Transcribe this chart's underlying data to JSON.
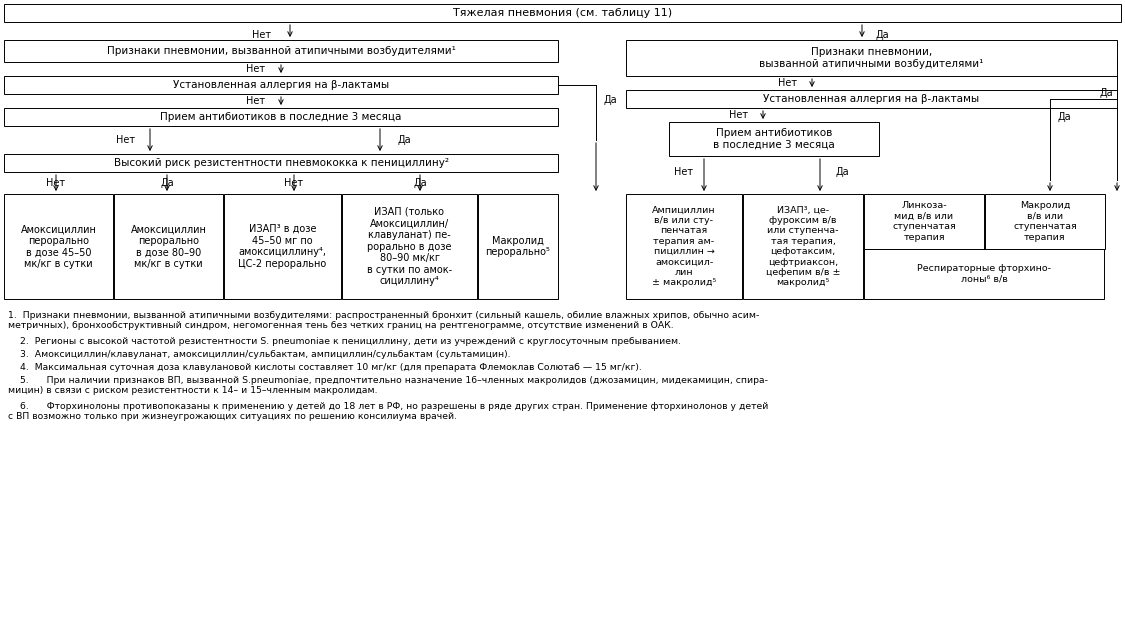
{
  "title": "Тяжелая пневмония (см. таблицу 11)",
  "bg_color": "#ffffff",
  "border_color": "#000000",
  "text_color": "#000000",
  "fn1": "1.  Признаки пневмонии, вызванной атипичными возбудителями: распространенный бронхит (сильный кашель, обилие влажных хрипов, обычно асим-\nметричных), бронхообструктивный синдром, негомогенная тень без четких границ на рентгенограмме, отсутствие изменений в ОАК.",
  "fn2": "    2.  Регионы с высокой частотой резистентности S. pneumoniae к пенициллину, дети из учреждений с круглосуточным пребыванием.",
  "fn3": "    3.  Амоксициллин/клавуланат, амоксициллин/сульбактам, ампициллин/сульбактам (сультамицин).",
  "fn4": "    4.  Максимальная суточная доза клавулановой кислоты составляет 10 мг/кг (для препарата Флемоклав Солютаб — 15 мг/кг).",
  "fn5": "    5.      При наличии признаков ВП, вызванной S.pneumoniae, предпочтительно назначение 16–членных макролидов (джозамицин, мидекамицин, спира-\nмицин) в связи с риском резистентности к 14– и 15–членным макролидам.",
  "fn6": "    6.      Фторхинолоны противопоказаны к применению у детей до 18 лет в РФ, но разрешены в ряде других стран. Применение фторхинолонов у детей\nс ВП возможно только при жизнеугрожающих ситуациях по решению консилиума врачей."
}
